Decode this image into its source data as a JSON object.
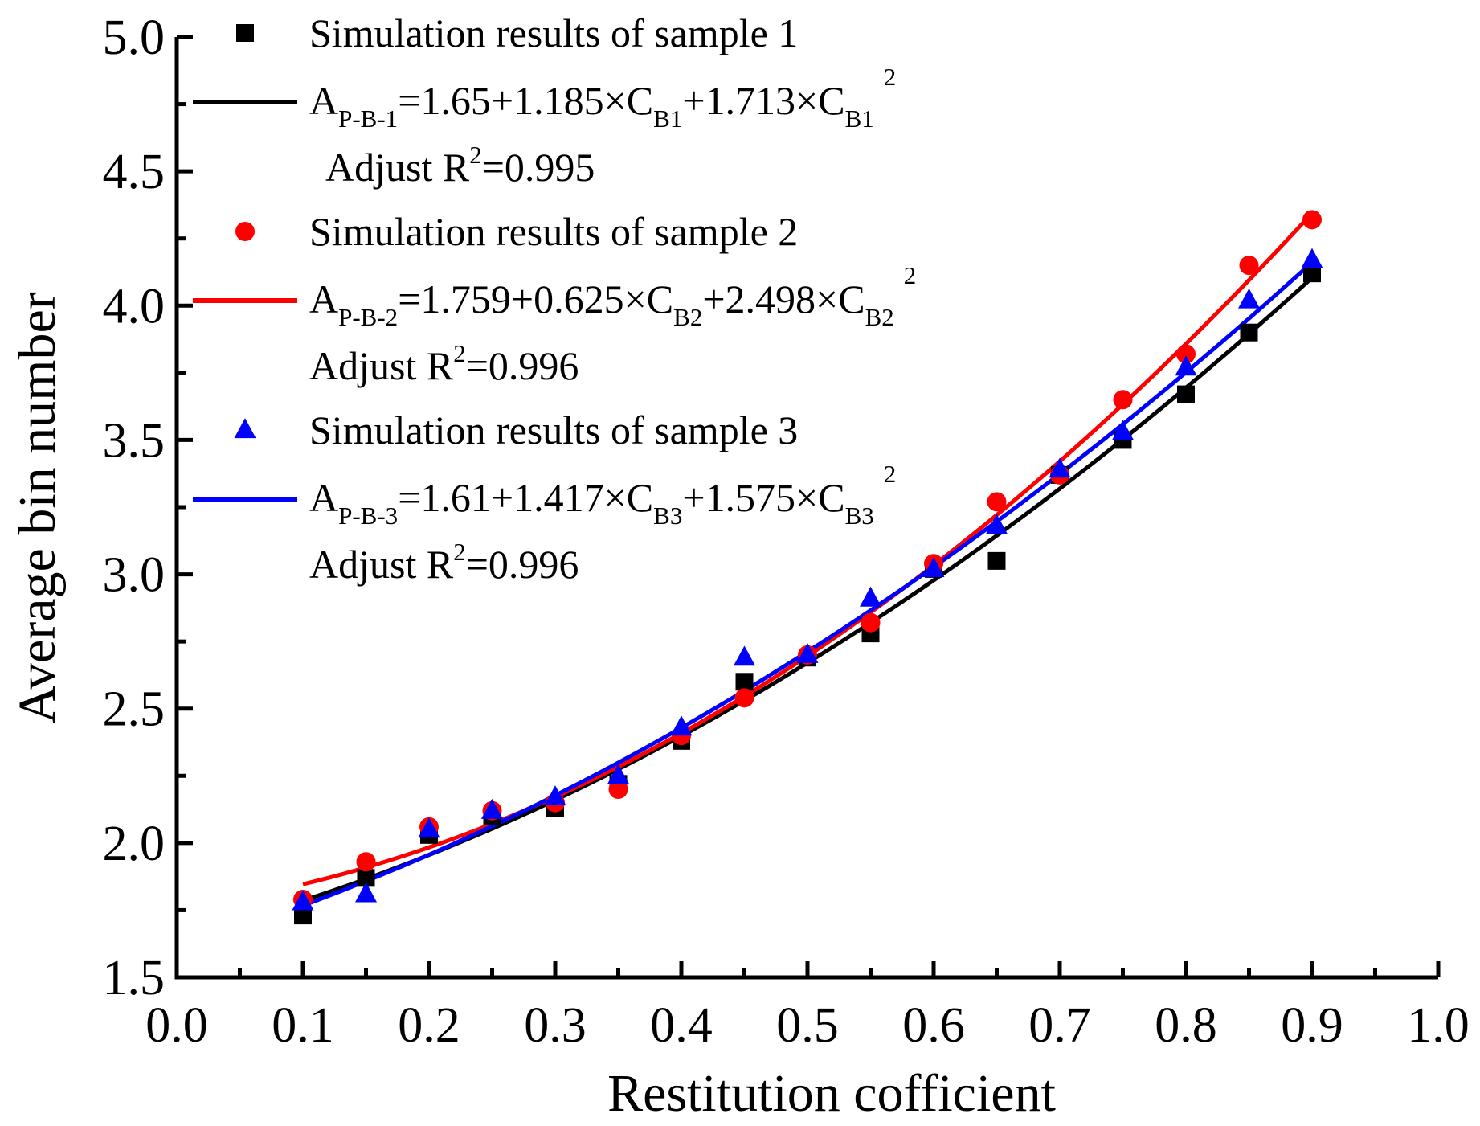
{
  "chart_data": {
    "type": "scatter",
    "xlabel": "Restitution cofficient",
    "ylabel": "Average bin number",
    "xlim": [
      0.0,
      1.0
    ],
    "ylim": [
      1.5,
      5.0
    ],
    "x_ticks": [
      "0.0",
      "0.1",
      "0.2",
      "0.3",
      "0.4",
      "0.5",
      "0.6",
      "0.7",
      "0.8",
      "0.9",
      "1.0"
    ],
    "y_ticks": [
      "1.5",
      "2.0",
      "2.5",
      "3.0",
      "3.5",
      "4.0",
      "4.5",
      "5.0"
    ],
    "grid": false,
    "legend_position": "top-left",
    "x": [
      0.1,
      0.15,
      0.2,
      0.25,
      0.3,
      0.35,
      0.4,
      0.45,
      0.5,
      0.55,
      0.6,
      0.65,
      0.7,
      0.75,
      0.8,
      0.85,
      0.9
    ],
    "series": [
      {
        "name": "Simulation results of sample 1",
        "marker": "square",
        "color": "#000000",
        "values": [
          1.73,
          1.87,
          2.03,
          2.1,
          2.13,
          2.22,
          2.38,
          2.6,
          2.69,
          2.78,
          3.02,
          3.05,
          3.37,
          3.5,
          3.67,
          3.9,
          4.12
        ],
        "fit": {
          "a": 1.65,
          "b": 1.185,
          "c": 1.713,
          "x_range": [
            0.1,
            0.9
          ]
        },
        "fit_label_main": "A",
        "fit_label_sub": "P-B-1",
        "fit_label_rest": "=1.65+1.185×C",
        "fit_label_sub2": "B1",
        "fit_label_rest2": "+1.713×C",
        "fit_label_sub3": "B1",
        "fit_label_sup": "2",
        "r2_prefix": "Adjust R",
        "r2_sup": "2",
        "r2_value": "=0.995"
      },
      {
        "name": "Simulation results of sample 2",
        "marker": "circle",
        "color": "#ff0000",
        "values": [
          1.79,
          1.93,
          2.06,
          2.12,
          2.15,
          2.2,
          2.4,
          2.54,
          2.7,
          2.82,
          3.04,
          3.27,
          3.37,
          3.65,
          3.82,
          4.15,
          4.32
        ],
        "fit": {
          "a": 1.759,
          "b": 0.625,
          "c": 2.498,
          "x_range": [
            0.1,
            0.9
          ]
        },
        "fit_label_main": "A",
        "fit_label_sub": "P-B-2",
        "fit_label_rest": "=1.759+0.625×C",
        "fit_label_sub2": "B2",
        "fit_label_rest2": "+2.498×C",
        "fit_label_sub3": "B2",
        "fit_label_sup": "2",
        "r2_prefix": "Adjust R",
        "r2_sup": "2",
        "r2_value": "=0.996"
      },
      {
        "name": "Simulation results of sample 3",
        "marker": "triangle",
        "color": "#0000ff",
        "values": [
          1.78,
          1.81,
          2.05,
          2.12,
          2.17,
          2.25,
          2.43,
          2.69,
          2.7,
          2.91,
          3.02,
          3.18,
          3.39,
          3.53,
          3.77,
          4.02,
          4.17
        ],
        "fit": {
          "a": 1.61,
          "b": 1.417,
          "c": 1.575,
          "x_range": [
            0.1,
            0.9
          ]
        },
        "fit_label_main": "A",
        "fit_label_sub": "P-B-3",
        "fit_label_rest": "=1.61+1.417×C",
        "fit_label_sub2": "B3",
        "fit_label_rest2": "+1.575×C",
        "fit_label_sub3": "B3",
        "fit_label_sup": "2",
        "r2_prefix": "Adjust R",
        "r2_sup": "2",
        "r2_value": "=0.996"
      }
    ]
  }
}
